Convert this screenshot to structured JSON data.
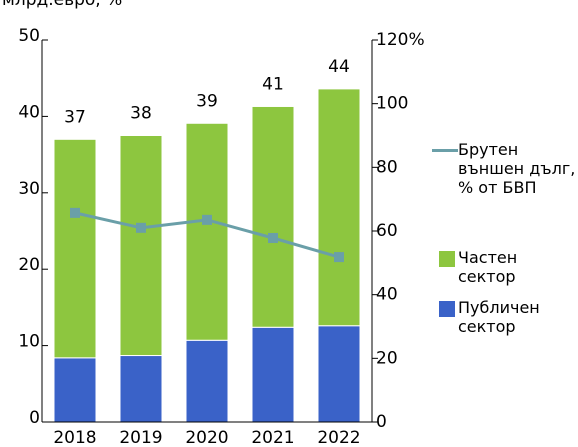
{
  "chart_data": {
    "type": "bar",
    "subtitle": "млрд.евро, %",
    "categories": [
      "2018",
      "2019",
      "2020",
      "2021",
      "2022"
    ],
    "series": [
      {
        "name": "Публичен сектор",
        "color": "#3a62c8",
        "values": [
          8.4,
          8.7,
          10.7,
          12.4,
          12.6
        ]
      },
      {
        "name": "Частен сектор",
        "color": "#8dc63f",
        "values": [
          28.6,
          28.8,
          28.4,
          28.9,
          31.0
        ]
      },
      {
        "name": "Брутен външен дълг, % от БВП",
        "color": "#6a9fa8",
        "type": "line",
        "axis": "y2",
        "values": [
          65.7,
          61.0,
          63.5,
          57.8,
          51.8
        ]
      }
    ],
    "total_labels": [
      "37",
      "38",
      "39",
      "41",
      "44"
    ],
    "ylim": [
      0,
      50
    ],
    "yticks": [
      0,
      10,
      20,
      30,
      40,
      50
    ],
    "y2lim": [
      0,
      120
    ],
    "y2ticks": [
      0,
      20,
      40,
      60,
      80,
      100,
      {
        "value": 120,
        "label": "120%"
      }
    ]
  }
}
